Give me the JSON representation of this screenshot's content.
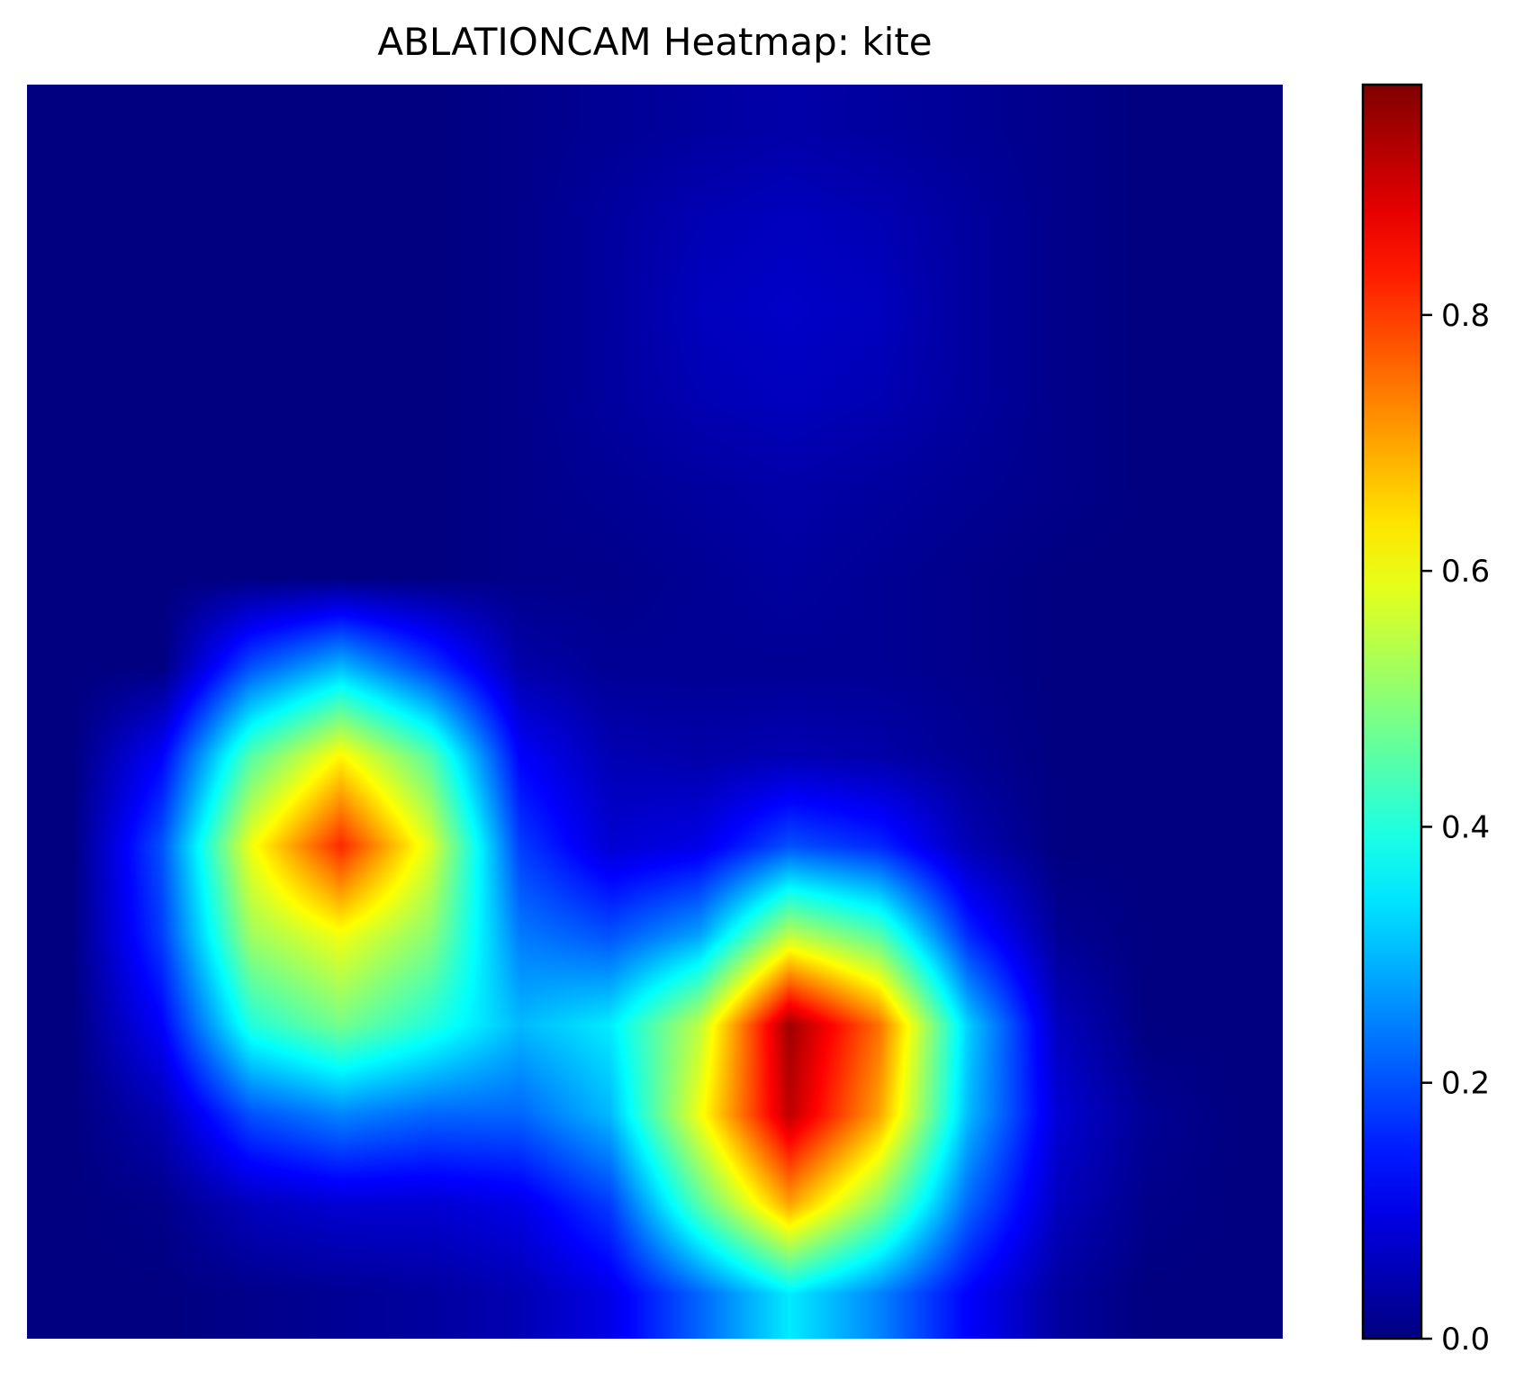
{
  "chart_data": {
    "type": "heatmap",
    "title": "ABLATIONCAM Heatmap: kite",
    "colormap": "jet",
    "colorbar": {
      "range": [
        0.0,
        0.98
      ],
      "ticks": [
        0.0,
        0.2,
        0.4,
        0.6,
        0.8
      ],
      "tick_labels": [
        "0.0",
        "0.2",
        "0.4",
        "0.6",
        "0.8"
      ]
    },
    "grid_rows": 14,
    "grid_cols": 14,
    "grid": [
      [
        0.0,
        0.0,
        0.0,
        0.0,
        0.0,
        0.01,
        0.02,
        0.03,
        0.04,
        0.03,
        0.02,
        0.01,
        0.0,
        0.0
      ],
      [
        0.0,
        0.0,
        0.0,
        0.0,
        0.0,
        0.01,
        0.03,
        0.05,
        0.06,
        0.05,
        0.03,
        0.01,
        0.0,
        0.0
      ],
      [
        0.0,
        0.0,
        0.0,
        0.0,
        0.0,
        0.01,
        0.03,
        0.06,
        0.07,
        0.06,
        0.03,
        0.01,
        0.0,
        0.0
      ],
      [
        0.0,
        0.0,
        0.0,
        0.0,
        0.0,
        0.01,
        0.03,
        0.05,
        0.06,
        0.05,
        0.03,
        0.01,
        0.0,
        0.0
      ],
      [
        0.0,
        0.0,
        0.0,
        0.0,
        0.0,
        0.01,
        0.02,
        0.03,
        0.04,
        0.03,
        0.02,
        0.01,
        0.0,
        0.0
      ],
      [
        0.0,
        0.0,
        0.0,
        0.0,
        0.0,
        0.01,
        0.01,
        0.02,
        0.03,
        0.02,
        0.01,
        0.0,
        0.0,
        0.0
      ],
      [
        0.0,
        0.0,
        0.2,
        0.3,
        0.18,
        0.04,
        0.02,
        0.02,
        0.02,
        0.02,
        0.01,
        0.0,
        0.0,
        0.0
      ],
      [
        0.0,
        0.12,
        0.45,
        0.62,
        0.45,
        0.12,
        0.05,
        0.04,
        0.05,
        0.04,
        0.02,
        0.0,
        0.0,
        0.0
      ],
      [
        0.0,
        0.2,
        0.6,
        0.82,
        0.58,
        0.18,
        0.08,
        0.1,
        0.2,
        0.16,
        0.05,
        0.0,
        0.0,
        0.0
      ],
      [
        0.0,
        0.18,
        0.52,
        0.6,
        0.5,
        0.24,
        0.2,
        0.28,
        0.55,
        0.45,
        0.16,
        0.02,
        0.0,
        0.0
      ],
      [
        0.0,
        0.12,
        0.4,
        0.48,
        0.4,
        0.3,
        0.35,
        0.55,
        0.95,
        0.75,
        0.32,
        0.06,
        0.0,
        0.0
      ],
      [
        0.0,
        0.05,
        0.2,
        0.25,
        0.22,
        0.22,
        0.3,
        0.6,
        0.92,
        0.7,
        0.3,
        0.08,
        0.02,
        0.0
      ],
      [
        0.0,
        0.01,
        0.06,
        0.08,
        0.08,
        0.1,
        0.18,
        0.45,
        0.7,
        0.5,
        0.22,
        0.06,
        0.01,
        0.0
      ],
      [
        0.0,
        0.0,
        0.01,
        0.02,
        0.03,
        0.05,
        0.1,
        0.22,
        0.35,
        0.25,
        0.12,
        0.03,
        0.0,
        0.0
      ]
    ]
  }
}
